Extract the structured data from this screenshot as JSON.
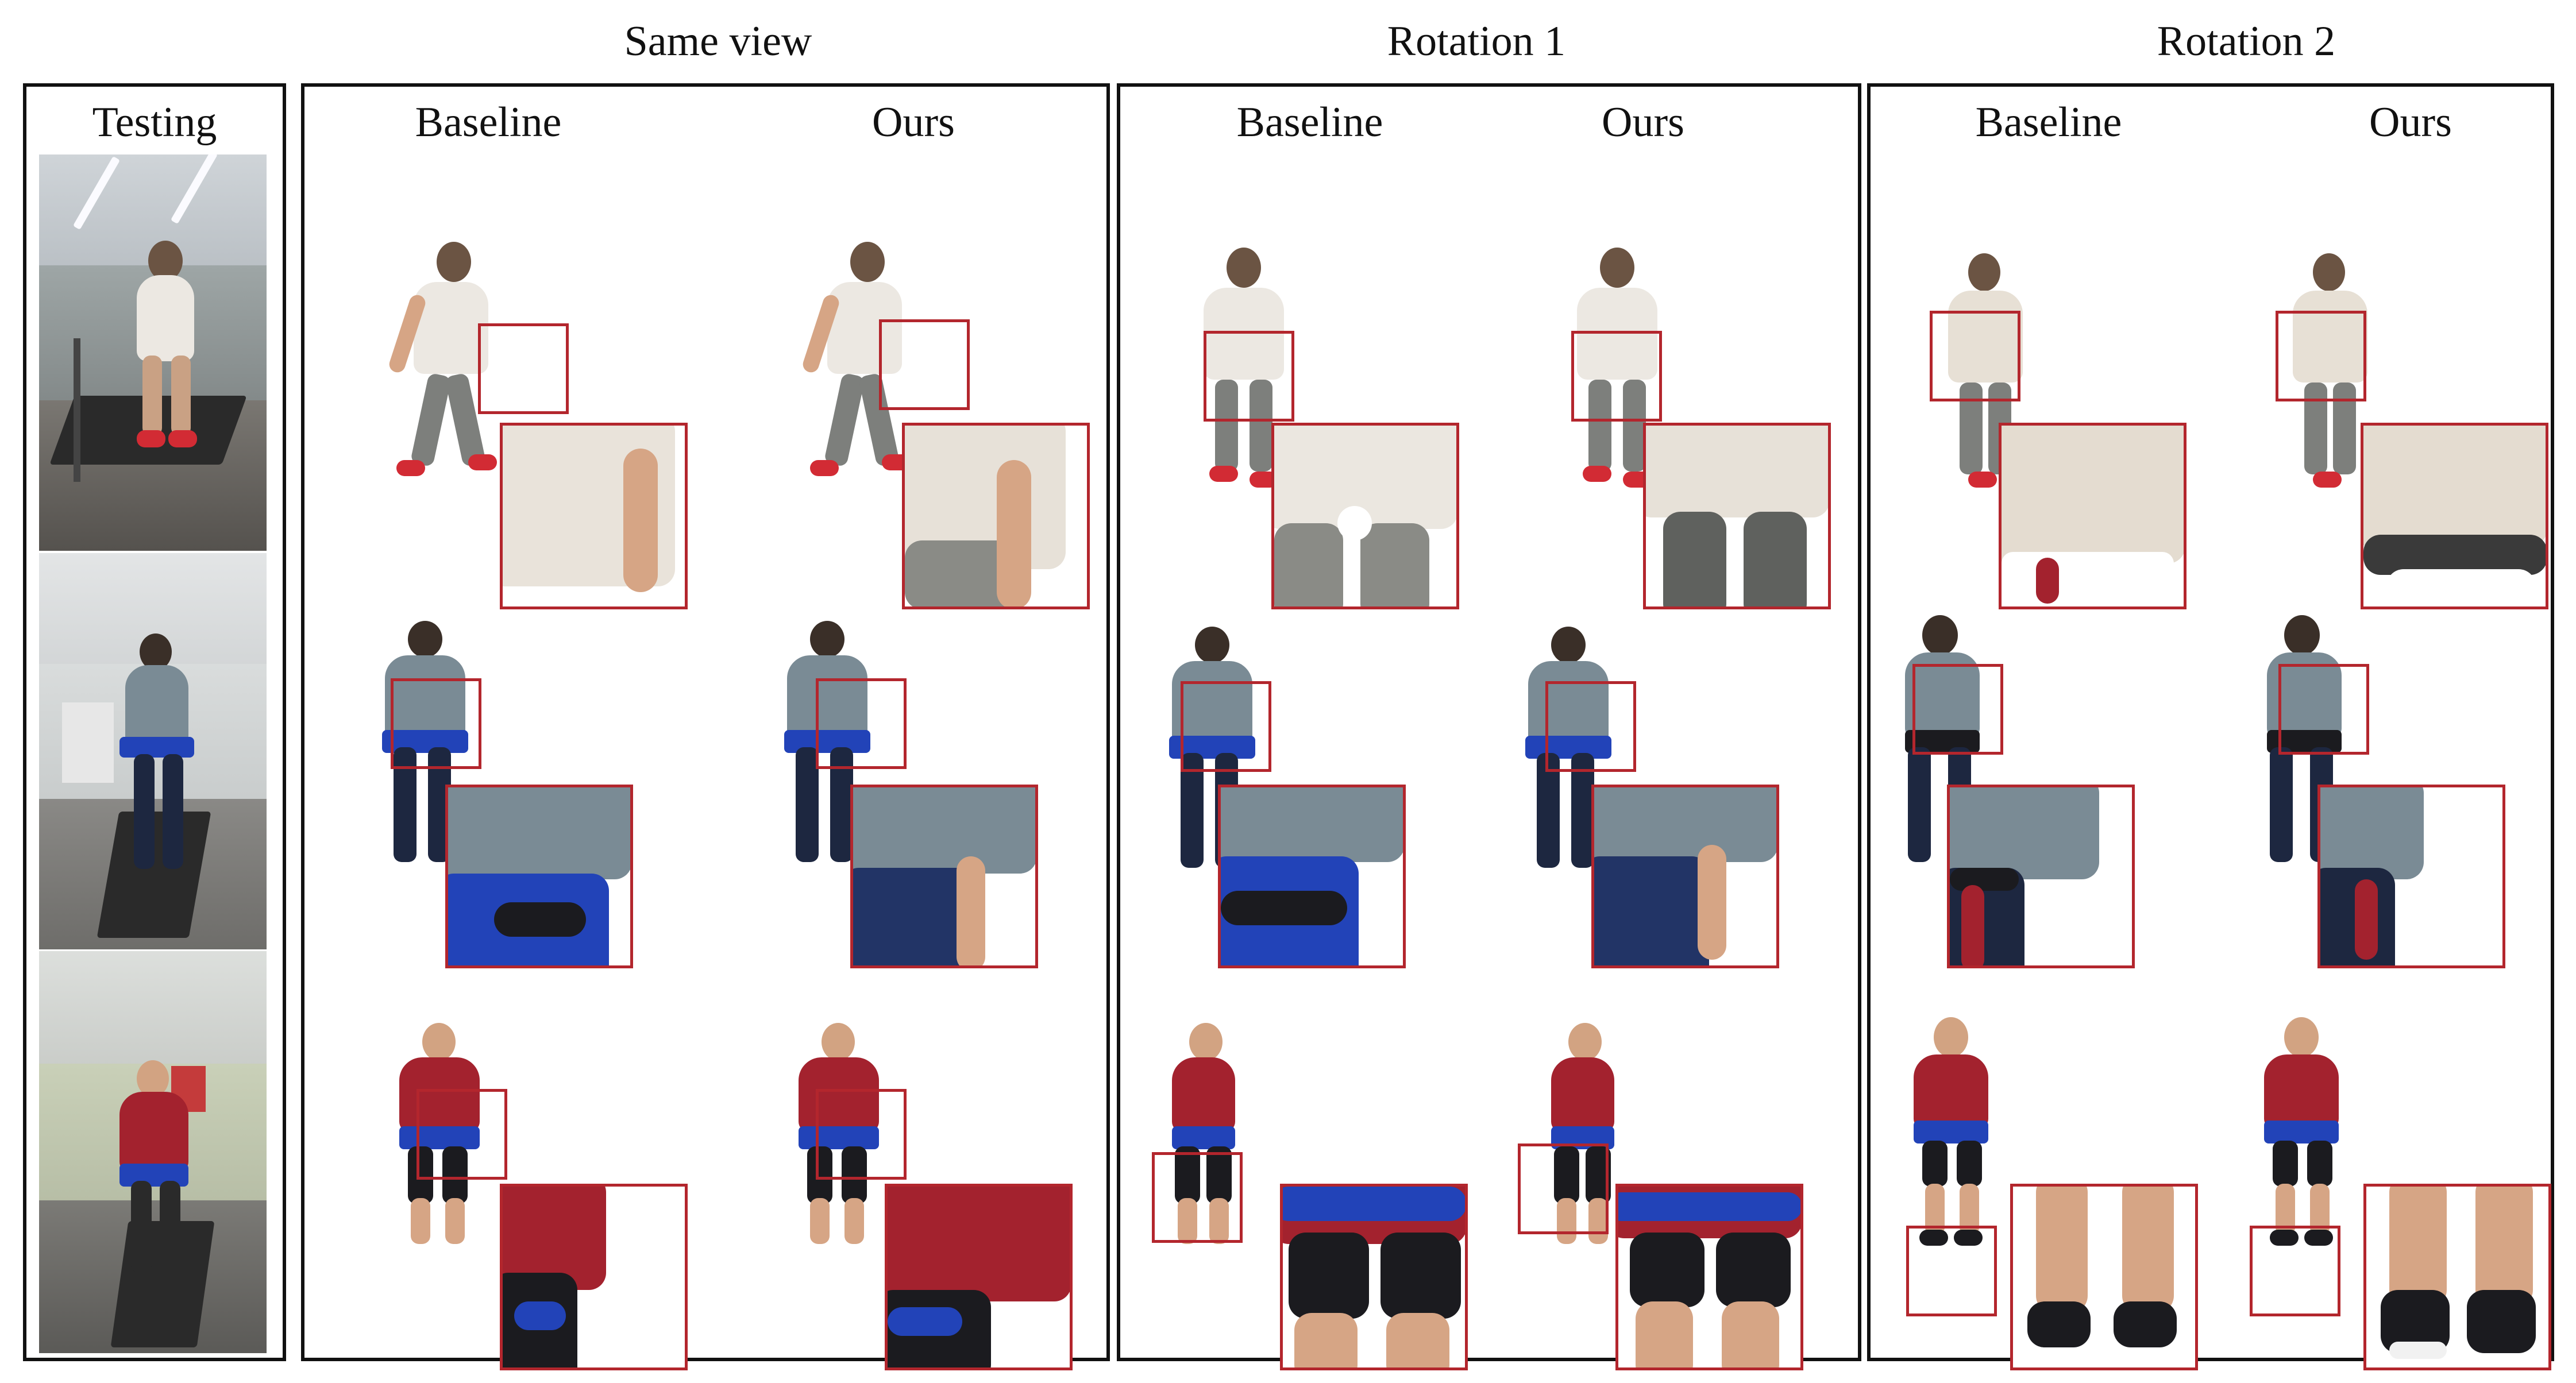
{
  "headers": {
    "same_view": "Same view",
    "rotation_1": "Rotation 1",
    "rotation_2": "Rotation 2"
  },
  "testing": {
    "title": "Testing"
  },
  "columns": {
    "baseline": "Baseline",
    "ours": "Ours"
  },
  "colors": {
    "zoom_box": "#b3262d",
    "shirt_white": "#ece8e2",
    "shirt_striped": "#7a8b95",
    "shirt_red": "#a3222e",
    "pants_navy": "#1d2740",
    "shorts_gray": "#7d7f7c",
    "shorts_black": "#1b1b1f",
    "skin": "#d6a585",
    "harness_blue": "#2243b8",
    "shoe_red": "#d22b34"
  }
}
